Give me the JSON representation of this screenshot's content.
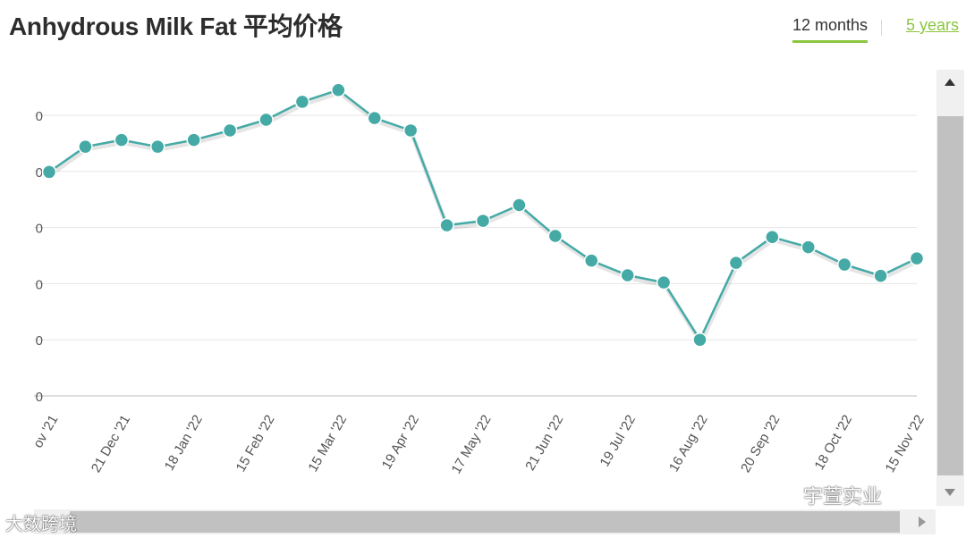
{
  "title": "Anhydrous Milk Fat 平均价格",
  "tabs": [
    {
      "label": "12 months",
      "active": true
    },
    {
      "label": "5 years",
      "active": false
    }
  ],
  "watermarks": {
    "left": "大数跨境",
    "right": "宇萱实业"
  },
  "chart_data": {
    "type": "line",
    "title": "Anhydrous Milk Fat 平均价格",
    "xlabel": "",
    "ylabel": "",
    "y_tick_labels": [
      "0",
      "0",
      "0",
      "0",
      "0",
      "0"
    ],
    "x_tick_labels": [
      "ov '21",
      "21 Dec '21",
      "18 Jan '22",
      "15 Feb '22",
      "15 Mar '22",
      "19 Apr '22",
      "17 May '22",
      "21 Jun '22",
      "19 Jul '22",
      "16 Aug '22",
      "20 Sep '22",
      "18 Oct '22",
      "15 Nov '22"
    ],
    "ylim": [
      0,
      5
    ],
    "grid": true,
    "color": "#45aaa6",
    "values": [
      3.99,
      4.44,
      4.56,
      4.44,
      4.56,
      4.73,
      4.92,
      5.24,
      5.45,
      4.95,
      4.73,
      3.04,
      3.12,
      3.4,
      2.85,
      2.41,
      2.15,
      2.02,
      1.0,
      2.37,
      2.83,
      2.65,
      2.34,
      2.14,
      2.45
    ]
  },
  "colors": {
    "accent": "#8cc640",
    "series": "#45aaa6",
    "scrollbar": "#c1c1c1"
  }
}
